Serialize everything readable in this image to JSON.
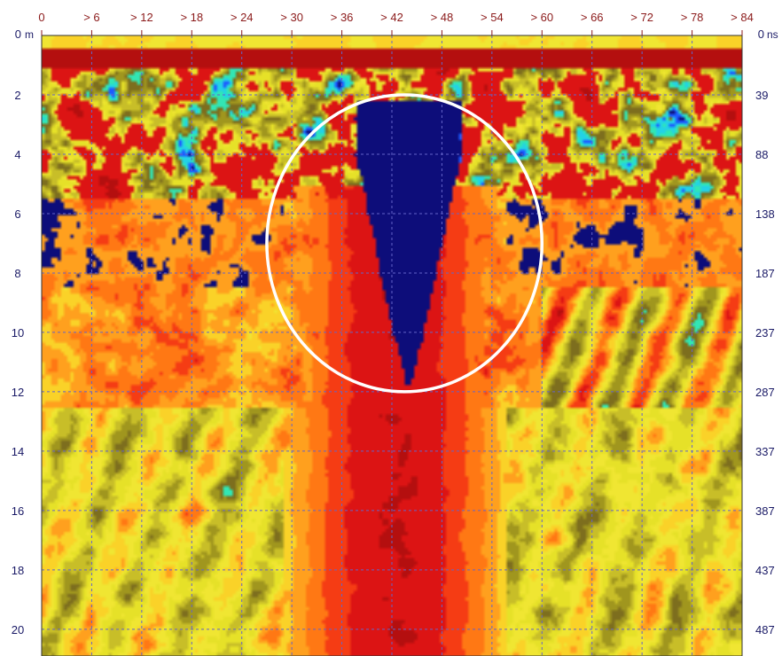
{
  "chart_data": {
    "type": "heatmap",
    "title": "",
    "x_axis": {
      "ticks": [
        0,
        6,
        12,
        18,
        24,
        30,
        36,
        42,
        48,
        54,
        60,
        66,
        72,
        78,
        84
      ],
      "tick_labels": [
        "0",
        "> 6",
        "> 12",
        "> 18",
        "> 24",
        "> 30",
        "> 36",
        "> 42",
        "> 48",
        "> 54",
        "> 60",
        "> 66",
        "> 72",
        "> 78",
        "> 84"
      ],
      "range": [
        0,
        84
      ]
    },
    "y_axis_left": {
      "ticks": [
        0,
        2,
        4,
        6,
        8,
        10,
        12,
        14,
        16,
        18,
        20
      ],
      "tick_labels": [
        "0",
        "2",
        "4",
        "6",
        "8",
        "10",
        "12",
        "14",
        "16",
        "18",
        "20"
      ],
      "unit": "m",
      "range": [
        0,
        20.9
      ]
    },
    "y_axis_right": {
      "ticks": [
        0,
        39,
        88,
        138,
        187,
        237,
        287,
        337,
        387,
        437,
        487
      ],
      "tick_labels": [
        "0",
        "39",
        "88",
        "138",
        "187",
        "237",
        "287",
        "337",
        "387",
        "437",
        "487"
      ],
      "unit": "ns"
    },
    "grid": true,
    "colors": {
      "grid": "#6464c8",
      "axis_top": "#8b1a1a",
      "axis_side": "#1a1a66",
      "highlight_circle": "#ffffff",
      "palette": [
        "#0d0d7a",
        "#1e5aff",
        "#23d2e6",
        "#32e6b4",
        "#7d6e1e",
        "#a0961e",
        "#c8be28",
        "#e6e128",
        "#f0e632",
        "#fad228",
        "#ffa01e",
        "#ff7814",
        "#f53c14",
        "#dc1414",
        "#b40f0f"
      ]
    },
    "annotations": [
      {
        "type": "circle",
        "center": [
          43.5,
          7.0
        ],
        "radius_x": 16.5,
        "radius_y": 5.0
      }
    ]
  }
}
